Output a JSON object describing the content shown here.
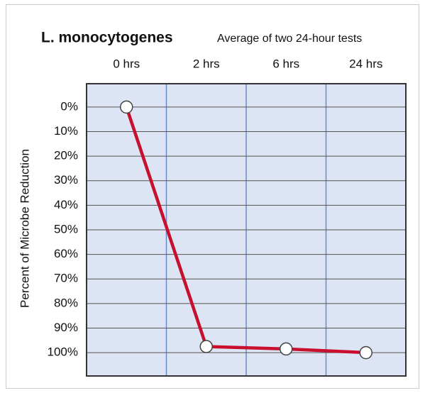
{
  "chart_data": {
    "type": "line",
    "title": "L. monocytogenes",
    "subtitle": "Average of two 24-hour tests",
    "y_label": "Percent of Microbe Reduction",
    "categories": [
      "0 hrs",
      "2 hrs",
      "6 hrs",
      "24 hrs"
    ],
    "series": [
      {
        "name": "L. monocytogenes",
        "color": "#c8102e",
        "values": [
          0,
          97.5,
          98.5,
          100
        ]
      }
    ],
    "ylim": [
      109.5,
      -9.5
    ],
    "yticks": [
      {
        "value": 0,
        "label": "0%"
      },
      {
        "value": 10,
        "label": "10%"
      },
      {
        "value": 20,
        "label": "20%"
      },
      {
        "value": 30,
        "label": "30%"
      },
      {
        "value": 40,
        "label": "40%"
      },
      {
        "value": 50,
        "label": "50%"
      },
      {
        "value": 60,
        "label": "60%"
      },
      {
        "value": 70,
        "label": "70%"
      },
      {
        "value": 80,
        "label": "80%"
      },
      {
        "value": 90,
        "label": "90%"
      },
      {
        "value": 100,
        "label": "100%"
      }
    ],
    "grid": true
  }
}
